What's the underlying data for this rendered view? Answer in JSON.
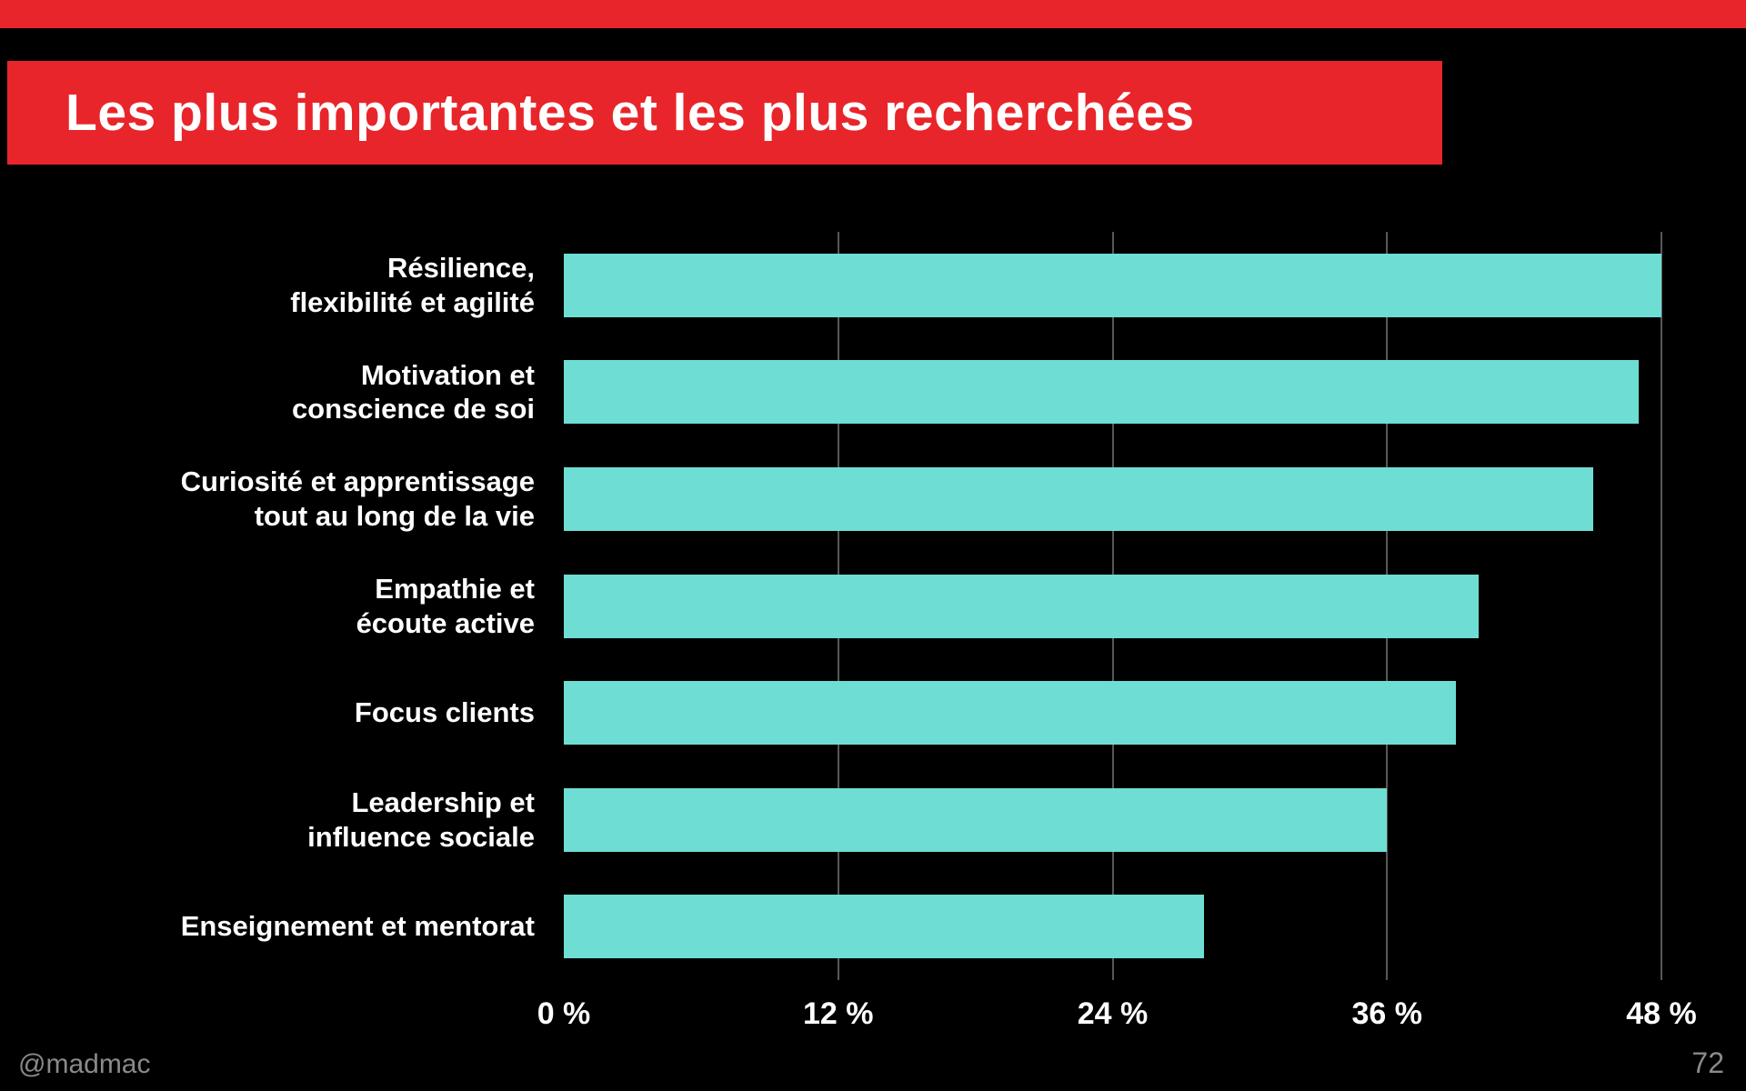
{
  "header": {
    "title": "Les plus importantes et les plus recherchées"
  },
  "footer": {
    "handle": "@madmac",
    "page_number": "72"
  },
  "colors": {
    "background": "#000000",
    "accent_red": "#e8252a",
    "bar_teal": "#6eddd3",
    "gridline": "#585858",
    "text": "#ffffff",
    "footer_text": "#8a8a8a"
  },
  "chart_data": {
    "type": "bar",
    "orientation": "horizontal",
    "title": "Les plus importantes et les plus recherchées",
    "categories": [
      "Résilience,\nflexibilité et agilité",
      "Motivation et\nconscience de soi",
      "Curiosité et apprentissage\ntout au long de la vie",
      "Empathie et\nécoute active",
      "Focus clients",
      "Leadership et\ninfluence sociale",
      "Enseignement et mentorat"
    ],
    "values": [
      48,
      47,
      45,
      40,
      39,
      36,
      28
    ],
    "unit": "%",
    "xlim": [
      0,
      48
    ],
    "x_tick_values": [
      0,
      12,
      24,
      36,
      48
    ],
    "x_tick_labels": [
      "0 %",
      "12 %",
      "24 %",
      "36 %",
      "48 %"
    ],
    "grid": true,
    "legend": false
  }
}
